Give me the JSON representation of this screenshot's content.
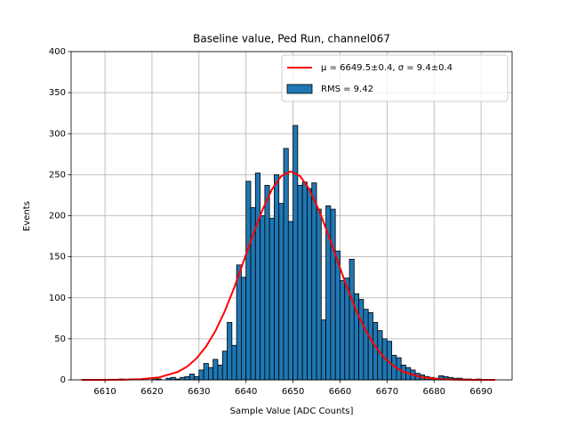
{
  "chart_data": {
    "type": "histogram",
    "title": "Baseline value, Ped Run, channel067",
    "xlabel": "Sample Value [ADC Counts]",
    "ylabel": "Events",
    "bins": [
      6606,
      6607,
      6608,
      6609,
      6610,
      6611,
      6612,
      6613,
      6614,
      6615,
      6616,
      6617,
      6618,
      6619,
      6620,
      6621,
      6622,
      6623,
      6624,
      6625,
      6626,
      6627,
      6628,
      6629,
      6630,
      6631,
      6632,
      6633,
      6634,
      6635,
      6636,
      6637,
      6638,
      6639,
      6640,
      6641,
      6642,
      6643,
      6644,
      6645,
      6646,
      6647,
      6648,
      6649,
      6650,
      6651,
      6652,
      6653,
      6654,
      6655,
      6656,
      6657,
      6658,
      6659,
      6660,
      6661,
      6662,
      6663,
      6664,
      6665,
      6666,
      6667,
      6668,
      6669,
      6670,
      6671,
      6672,
      6673,
      6674,
      6675,
      6676,
      6677,
      6678,
      6679,
      6680,
      6681,
      6682,
      6683,
      6684,
      6685,
      6686,
      6687,
      6688,
      6689,
      6690,
      6691,
      6692,
      6693,
      6694
    ],
    "series": [
      {
        "name": "RMS = 9.42",
        "color": "#1f77b4",
        "edgecolor": "#000000",
        "values": [
          0,
          0,
          0,
          0,
          0,
          0,
          0,
          1,
          0,
          0,
          1,
          1,
          0,
          0,
          2,
          1,
          0,
          2,
          3,
          1,
          3,
          4,
          7,
          4,
          12,
          20,
          15,
          25,
          18,
          35,
          70,
          42,
          140,
          125,
          242,
          210,
          252,
          200,
          237,
          197,
          250,
          215,
          282,
          193,
          310,
          237,
          241,
          233,
          240,
          208,
          73,
          212,
          208,
          157,
          121,
          124,
          147,
          105,
          98,
          86,
          82,
          70,
          60,
          50,
          47,
          30,
          27,
          18,
          15,
          12,
          8,
          6,
          4,
          3,
          2,
          5,
          4,
          3,
          2,
          2,
          1,
          1,
          0,
          1,
          0,
          0,
          0,
          0
        ]
      }
    ],
    "fit": {
      "name": "μ = 6649.5±0.4, σ = 9.4±0.4",
      "color": "#ff0000",
      "x": [
        6605,
        6609.5,
        6613.5,
        6617.5,
        6621.5,
        6625.5,
        6627.5,
        6629.5,
        6631.5,
        6633.5,
        6635.5,
        6637.5,
        6639.5,
        6641.5,
        6643.5,
        6645.5,
        6647.5,
        6649.5,
        6651.5,
        6653.5,
        6655.5,
        6657.5,
        6659.5,
        6661.5,
        6663.5,
        6665.5,
        6667.5,
        6669.5,
        6671.5,
        6673.5,
        6677.5,
        6681.5,
        6685.5,
        6689.5,
        6693
      ],
      "values": [
        0,
        0,
        0.2,
        0.8,
        3,
        9.7,
        16.3,
        26.3,
        40.6,
        59.6,
        83.8,
        112.5,
        144.6,
        177,
        207,
        232,
        248.3,
        254,
        248.3,
        232,
        207,
        177,
        144.6,
        112.5,
        83.8,
        59.6,
        40.6,
        26.3,
        16.3,
        9.7,
        3,
        0.8,
        0.2,
        0,
        0
      ]
    },
    "xlim": [
      6602.8,
      6696.6
    ],
    "ylim": [
      0,
      400
    ],
    "xticks": [
      6610,
      6620,
      6630,
      6640,
      6650,
      6660,
      6670,
      6680,
      6690
    ],
    "yticks": [
      0,
      50,
      100,
      150,
      200,
      250,
      300,
      350,
      400
    ],
    "grid": true,
    "legend": "upper right"
  }
}
